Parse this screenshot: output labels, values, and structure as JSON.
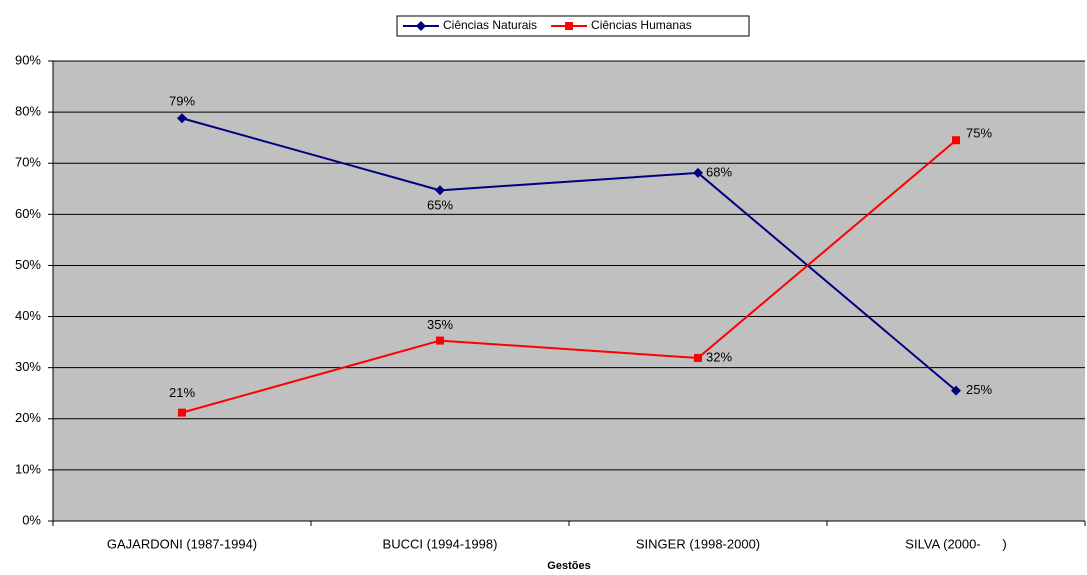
{
  "chart_data": {
    "type": "line",
    "x_label": "Gestões",
    "categories": [
      "GAJARDONI (1987-1994)",
      "BUCCI (1994-1998)",
      "SINGER (1998-2000)",
      "SILVA (2000-      )"
    ],
    "series": [
      {
        "name": "Ciências Naturais",
        "color": "#000080",
        "marker": "diamond",
        "values": [
          78.8,
          64.7,
          68.1,
          25.5
        ],
        "value_labels": [
          "79%",
          "65%",
          "68%",
          "25%"
        ]
      },
      {
        "name": "Ciências Humanas",
        "color": "#ff0000",
        "marker": "square",
        "values": [
          21.2,
          35.3,
          31.9,
          74.5
        ],
        "value_labels": [
          "21%",
          "35%",
          "32%",
          "75%"
        ]
      }
    ],
    "ylim": [
      0,
      90
    ],
    "yticks": [
      {
        "value": 0,
        "label": "0%"
      },
      {
        "value": 10,
        "label": "10%"
      },
      {
        "value": 20,
        "label": "20%"
      },
      {
        "value": 30,
        "label": "30%"
      },
      {
        "value": 40,
        "label": "40%"
      },
      {
        "value": 50,
        "label": "50%"
      },
      {
        "value": 60,
        "label": "60%"
      },
      {
        "value": 70,
        "label": "70%"
      },
      {
        "value": 80,
        "label": "80%"
      },
      {
        "value": 90,
        "label": "90%"
      }
    ],
    "grid": true,
    "plot_background": "#c0c0c0",
    "legend": "top"
  }
}
